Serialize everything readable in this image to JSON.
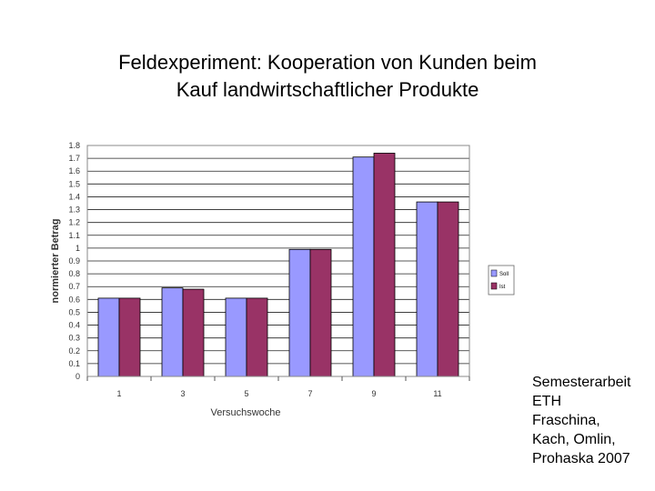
{
  "title": {
    "line1": "Feldexperiment: Kooperation von Kunden beim",
    "line2": "Kauf landwirtschaftlicher Produkte"
  },
  "credit": {
    "lines": [
      "Semesterarbeit",
      "ETH",
      "Fraschina,",
      "Kach, Omlin,",
      "Prohaska 2007"
    ]
  },
  "chart_data": {
    "type": "bar",
    "categories": [
      "1",
      "3",
      "5",
      "7",
      "9",
      "11"
    ],
    "series": [
      {
        "name": "Soll",
        "values": [
          0.61,
          0.69,
          0.61,
          0.99,
          1.71,
          1.36
        ],
        "color": "#9999ff"
      },
      {
        "name": "Ist",
        "values": [
          0.61,
          0.68,
          0.61,
          0.99,
          1.74,
          1.36
        ],
        "color": "#993366"
      }
    ],
    "xlabel": "Versuchswoche",
    "ylabel": "normierter Betrag",
    "ylim": [
      0,
      1.8
    ],
    "yticks": [
      "0",
      "0.1",
      "0.2",
      "0.3",
      "0.4",
      "0.5",
      "0.6",
      "0.7",
      "0.8",
      "0.9",
      "1",
      "1.1",
      "1.2",
      "1.3",
      "1.4",
      "1.5",
      "1.6",
      "1.7",
      "1.8"
    ],
    "grid": true,
    "legend_position": "right"
  }
}
